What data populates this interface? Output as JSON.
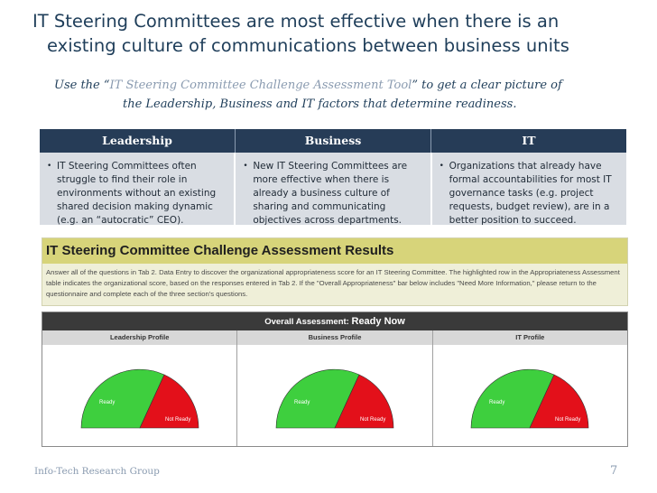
{
  "title": {
    "line1": "IT Steering Committees are most effective when there is an",
    "line2": "existing culture of communications between business units"
  },
  "subtitle": {
    "prefix": "Use the “",
    "tool_name": "IT Steering Committee Challenge Assessment Tool",
    "suffix": "” to get a clear picture of",
    "line2": "the Leadership, Business and IT factors that determine readiness."
  },
  "factors": {
    "headers": [
      "Leadership",
      "Business",
      "IT"
    ],
    "bullets": [
      "IT Steering Committees often struggle to find their role in environments without an existing shared decision making dynamic (e.g. an “autocratic” CEO).",
      "New IT Steering Committees are more effective when there is already a business culture of sharing and communicating objectives across departments.",
      "Organizations that already have formal accountabilities for most IT governance tasks (e.g. project requests, budget review), are in a better position to succeed."
    ]
  },
  "results": {
    "title": "IT Steering Committee Challenge Assessment Results",
    "text": "Answer all of the questions in Tab 2. Data Entry to discover the organizational appropriateness score for an IT Steering Committee. The highlighted row in the Appropriateness Assessment table indicates the organizational score, based on the responses entered in Tab 2. If the \"Overall Appropriateness\" bar below includes \"Need More Information,\" please return to the questionnaire and complete each of the three section's questions."
  },
  "assessment": {
    "label": "Overall Assessment:",
    "value": "Ready Now",
    "profiles": [
      {
        "label": "Leadership  Profile",
        "ready": "Ready",
        "not_ready": "Not Ready"
      },
      {
        "label": "Business  Profile",
        "ready": "Ready",
        "not_ready": "Not Ready"
      },
      {
        "label": "IT Profile",
        "ready": "Ready",
        "not_ready": "Not Ready"
      }
    ],
    "colors": {
      "ready": "#3ecf3e",
      "not_ready": "#e3101a"
    }
  },
  "footer": {
    "org": "Info-Tech Research Group",
    "page": "7"
  }
}
